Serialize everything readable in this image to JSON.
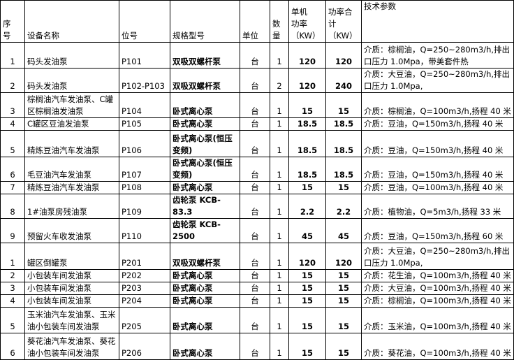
{
  "table": {
    "header": [
      "序\n号",
      "设备名称",
      "位号",
      "规格型号",
      "单位",
      "数\n量",
      "单机\n功率\n（KW）",
      "功率合\n计（KW）",
      "技术参数"
    ],
    "rows": [
      [
        1,
        "码头发油泵",
        "P101",
        "双吸双螺杆泵",
        "台",
        1,
        120,
        120,
        "介质：棕榈油，Q=250~280m3/h,排出口压力 1.0Mpa，带美套件热"
      ],
      [
        2,
        "码头发油泵",
        "P102-P103",
        "双吸双螺杆泵",
        "台",
        2,
        120,
        240,
        "介质：大豆油，Q=250~280m3/h,排出口压力 1.0Mpa,"
      ],
      [
        3,
        "棕榈油汽车发油泵、C罐区棕榈油发油泵",
        "P104",
        "卧式离心泵",
        "台",
        1,
        15,
        15,
        "介质：棕榈油，Q=100m3/h,扬程 40 米"
      ],
      [
        4,
        "C罐区豆油发油泵",
        "P105",
        "卧式离心泵",
        "台",
        1,
        18.5,
        18.5,
        "介质：豆油，Q=150m3/h,扬程 40 米"
      ],
      [
        5,
        "精炼豆油汽车发油泵",
        "P106",
        "卧式离心泵(恒压变频)",
        "台",
        1,
        18.5,
        18.5,
        "介质：豆油，Q=150m3/h,扬程 40 米"
      ],
      [
        6,
        "毛豆油汽车发油泵",
        "P107",
        "卧式离心泵(恒压变频)",
        "台",
        1,
        18.5,
        18.5,
        "介质：豆油，Q=150m3/h,扬程 40 米"
      ],
      [
        7,
        "精炼豆油汽车发油泵",
        "P108",
        "卧式离心泵",
        "台",
        1,
        15,
        15,
        "介质：豆油，Q=100m3/h,扬程 40 米"
      ],
      [
        8,
        "1#油泵房残油泵",
        "P109",
        "齿轮泵 KCB-83.3",
        "台",
        1,
        2.2,
        2.2,
        "介质：植物油，Q=5m3/h,扬程 33 米"
      ],
      [
        9,
        "预留火车收发油泵",
        "P110",
        "齿轮泵 KCB-2500",
        "台",
        1,
        45,
        45,
        "介质：豆油，Q=150m3/h,扬程 60 米"
      ],
      [
        1,
        "罐区倒罐泵",
        "P201",
        "双吸双螺杆泵",
        "台",
        1,
        120,
        120,
        "介质：大豆油，Q=250~280m3/h,排出口压力 1.0Mpa,"
      ],
      [
        2,
        "小包装车间发油泵",
        "P202",
        "卧式离心泵",
        "台",
        1,
        15,
        15,
        "介质：花生油，Q=100m3/h,扬程 40 米"
      ],
      [
        3,
        "小包装车间发油泵",
        "P203",
        "卧式离心泵",
        "台",
        1,
        15,
        15,
        "介质：大豆油，Q=100m3/h,扬程 40 米"
      ],
      [
        4,
        "小包装车间发油泵",
        "P204",
        "卧式离心泵",
        "台",
        1,
        15,
        15,
        "介质：棕榈油，Q=100m3/h,扬程 40 米"
      ],
      [
        5,
        "玉米油汽车发油泵、玉米油小包装车间发油泵",
        "P205",
        "卧式离心泵",
        "台",
        1,
        15,
        15,
        "介质：玉米油，Q=100m3/h,扬程 40 米"
      ],
      [
        6,
        "葵花油汽车发油泵、葵花油小包装车间发油泵",
        "P206",
        "卧式离心泵",
        "台",
        1,
        15,
        15,
        "介质：葵花油，Q=100m3/h,扬程 40 米"
      ]
    ]
  }
}
